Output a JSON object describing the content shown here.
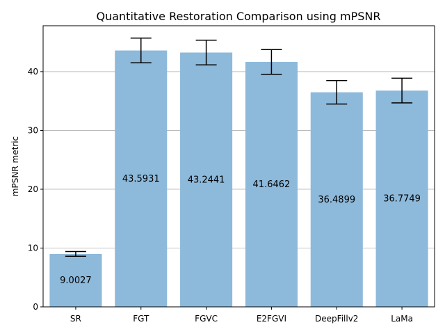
{
  "chart_data": {
    "type": "bar",
    "title": "Quantitative Restoration Comparison using mPSNR",
    "xlabel": "",
    "ylabel": "mPSNR metric",
    "categories": [
      "SR",
      "FGT",
      "FGVC",
      "E2FGVI",
      "DeepFillv2",
      "LaMa"
    ],
    "values": [
      9.0027,
      43.5931,
      43.2441,
      41.6462,
      36.4899,
      36.7749
    ],
    "value_labels": [
      "9.0027",
      "43.5931",
      "43.2441",
      "41.6462",
      "36.4899",
      "36.7749"
    ],
    "error": [
      0.4,
      2.1,
      2.1,
      2.1,
      2.0,
      2.1
    ],
    "yticks": [
      0,
      10,
      20,
      30,
      40
    ],
    "ylim": [
      0,
      47.8
    ],
    "grid": "horizontal",
    "bar_color": "#8db9db",
    "errorbar_color": "#000000"
  }
}
